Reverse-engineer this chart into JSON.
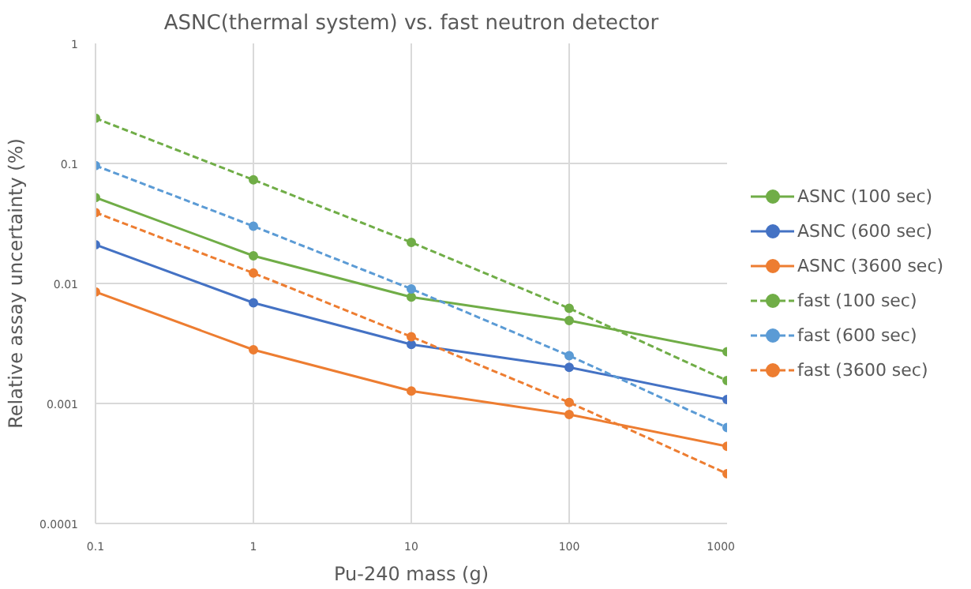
{
  "chart_data": {
    "type": "line",
    "title": "ASNC(thermal system) vs. fast neutron detector",
    "xlabel": "Pu-240 mass (g)",
    "ylabel": "Relative assay uncertainty (%)",
    "log": "xy",
    "x": [
      0.1,
      1,
      10,
      100,
      1000
    ],
    "xlim": [
      0.1,
      1000
    ],
    "xticks": [
      0.1,
      1,
      10,
      100,
      1000
    ],
    "ylim": [
      0.0001,
      1
    ],
    "yticks": [
      0.0001,
      0.001,
      0.01,
      0.1,
      1
    ],
    "grid": true,
    "legend": "right",
    "marker": "circle",
    "series": [
      {
        "name": "ASNC (100 sec)",
        "color": "#70ad47",
        "line_style": "solid",
        "values": [
          0.052,
          0.017,
          0.0077,
          0.0049,
          0.0027
        ]
      },
      {
        "name": "ASNC (600 sec)",
        "color": "#4472c4",
        "line_style": "solid",
        "values": [
          0.021,
          0.0069,
          0.0031,
          0.002,
          0.00108
        ]
      },
      {
        "name": "ASNC (3600 sec)",
        "color": "#ed7d31",
        "line_style": "solid",
        "values": [
          0.0085,
          0.0028,
          0.00127,
          0.00081,
          0.00044
        ]
      },
      {
        "name": "fast (100 sec)",
        "color": "#70ad47",
        "line_style": "dashed",
        "values": [
          0.238,
          0.073,
          0.022,
          0.0062,
          0.00155
        ]
      },
      {
        "name": "fast (600 sec)",
        "color": "#5b9bd5",
        "line_style": "dashed",
        "values": [
          0.096,
          0.03,
          0.009,
          0.0025,
          0.00063
        ]
      },
      {
        "name": "fast (3600 sec)",
        "color": "#ed7d31",
        "line_style": "dashed",
        "values": [
          0.039,
          0.0122,
          0.0036,
          0.00102,
          0.00026
        ]
      }
    ]
  }
}
